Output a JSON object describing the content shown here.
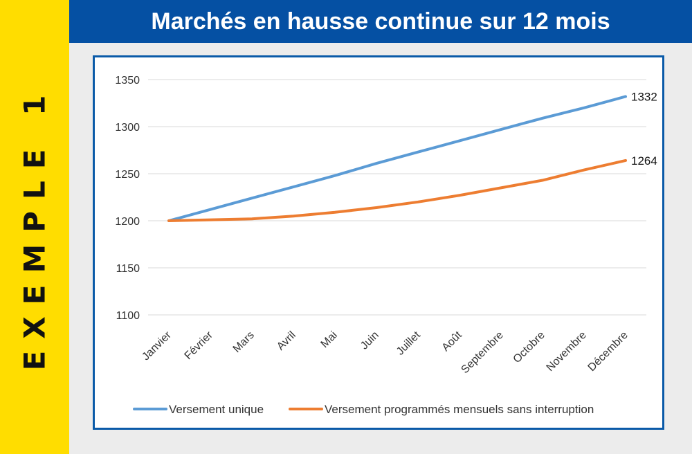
{
  "side_label": "EXEMPLE 1",
  "colors": {
    "side_band": "#ffdd00",
    "title_bar": "#0550a3",
    "frame": "#0a5aa8"
  },
  "chart_data": {
    "type": "line",
    "title": "Marchés en hausse continue sur 12 mois",
    "categories": [
      "Janvier",
      "Février",
      "Mars",
      "Avril",
      "Mai",
      "Juin",
      "Juillet",
      "Août",
      "Septembre",
      "Octobre",
      "Novembre",
      "Décembre"
    ],
    "ylim": [
      1100,
      1350
    ],
    "yticks": [
      1100,
      1150,
      1200,
      1250,
      1300,
      1350
    ],
    "grid": true,
    "legend": "bottom",
    "series": [
      {
        "name": "Versement unique",
        "color": "#5b9bd5",
        "values": [
          1200,
          1212,
          1224,
          1236,
          1248,
          1261,
          1273,
          1285,
          1297,
          1309,
          1320,
          1332
        ],
        "end_label": "1332"
      },
      {
        "name": "Versement programmés mensuels sans interruption",
        "color": "#ed7d31",
        "values": [
          1200,
          1201,
          1202,
          1205,
          1209,
          1214,
          1220,
          1227,
          1235,
          1243,
          1254,
          1264
        ],
        "end_label": "1264"
      }
    ]
  }
}
